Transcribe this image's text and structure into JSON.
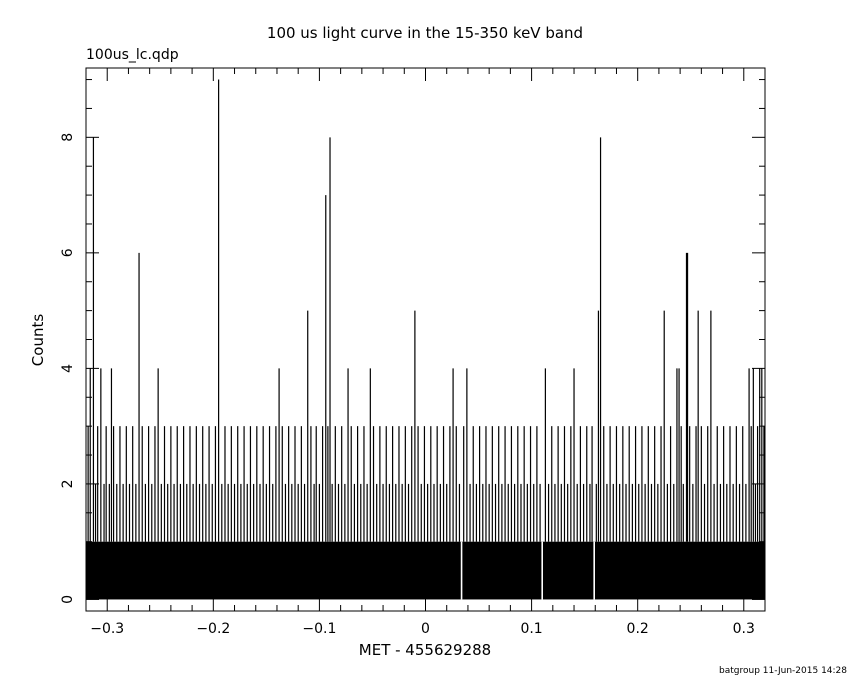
{
  "chart_data": {
    "type": "bar",
    "title": "100 us light curve in the 15-350 keV band",
    "subtitle": "100us_lc.qdp",
    "xlabel": "MET - 455629288",
    "ylabel": "Counts",
    "footer": "batgroup 11-Jun-2015 14:28",
    "xlim": [
      -0.32,
      0.32
    ],
    "ylim": [
      -0.2,
      9.2
    ],
    "x_ticks": [
      -0.3,
      -0.2,
      -0.1,
      0,
      0.1,
      0.2,
      0.3
    ],
    "x_tick_labels": [
      "−0.3",
      "−0.2",
      "−0.1",
      "0",
      "0.1",
      "0.2",
      "0.3"
    ],
    "y_ticks": [
      0,
      2,
      4,
      6,
      8
    ],
    "y_tick_labels": [
      "0",
      "2",
      "4",
      "6",
      "8"
    ],
    "grid": false,
    "bin_width": 0.0001,
    "baseline_counts": 1,
    "zero_count_bins": [
      0.034,
      0.11,
      0.159
    ],
    "series": [
      {
        "values_at_x": [
          [
            -0.318,
            3
          ],
          [
            -0.316,
            4
          ],
          [
            -0.313,
            8
          ],
          [
            -0.311,
            2
          ],
          [
            -0.309,
            3
          ],
          [
            -0.306,
            4
          ],
          [
            -0.303,
            2
          ],
          [
            -0.301,
            3
          ],
          [
            -0.298,
            2
          ],
          [
            -0.296,
            4
          ],
          [
            -0.294,
            3
          ],
          [
            -0.291,
            2
          ],
          [
            -0.288,
            3
          ],
          [
            -0.285,
            2
          ],
          [
            -0.282,
            3
          ],
          [
            -0.279,
            2
          ],
          [
            -0.276,
            3
          ],
          [
            -0.273,
            2
          ],
          [
            -0.27,
            6
          ],
          [
            -0.267,
            3
          ],
          [
            -0.264,
            2
          ],
          [
            -0.261,
            3
          ],
          [
            -0.258,
            2
          ],
          [
            -0.255,
            3
          ],
          [
            -0.252,
            4
          ],
          [
            -0.249,
            2
          ],
          [
            -0.246,
            3
          ],
          [
            -0.243,
            2
          ],
          [
            -0.24,
            3
          ],
          [
            -0.237,
            2
          ],
          [
            -0.234,
            3
          ],
          [
            -0.231,
            2
          ],
          [
            -0.228,
            3
          ],
          [
            -0.225,
            2
          ],
          [
            -0.222,
            3
          ],
          [
            -0.219,
            2
          ],
          [
            -0.216,
            3
          ],
          [
            -0.213,
            2
          ],
          [
            -0.21,
            3
          ],
          [
            -0.207,
            2
          ],
          [
            -0.204,
            3
          ],
          [
            -0.201,
            2
          ],
          [
            -0.198,
            3
          ],
          [
            -0.195,
            9
          ],
          [
            -0.192,
            2
          ],
          [
            -0.189,
            3
          ],
          [
            -0.186,
            2
          ],
          [
            -0.183,
            3
          ],
          [
            -0.18,
            2
          ],
          [
            -0.177,
            3
          ],
          [
            -0.174,
            2
          ],
          [
            -0.171,
            3
          ],
          [
            -0.168,
            2
          ],
          [
            -0.165,
            3
          ],
          [
            -0.162,
            2
          ],
          [
            -0.159,
            3
          ],
          [
            -0.156,
            2
          ],
          [
            -0.153,
            3
          ],
          [
            -0.15,
            2
          ],
          [
            -0.147,
            3
          ],
          [
            -0.144,
            2
          ],
          [
            -0.141,
            3
          ],
          [
            -0.138,
            4
          ],
          [
            -0.135,
            3
          ],
          [
            -0.132,
            2
          ],
          [
            -0.129,
            3
          ],
          [
            -0.126,
            2
          ],
          [
            -0.123,
            3
          ],
          [
            -0.12,
            2
          ],
          [
            -0.117,
            3
          ],
          [
            -0.114,
            2
          ],
          [
            -0.111,
            5
          ],
          [
            -0.108,
            3
          ],
          [
            -0.105,
            2
          ],
          [
            -0.103,
            3
          ],
          [
            -0.1,
            2
          ],
          [
            -0.097,
            3
          ],
          [
            -0.094,
            7
          ],
          [
            -0.092,
            3
          ],
          [
            -0.09,
            8
          ],
          [
            -0.088,
            2
          ],
          [
            -0.085,
            3
          ],
          [
            -0.082,
            2
          ],
          [
            -0.079,
            3
          ],
          [
            -0.076,
            2
          ],
          [
            -0.073,
            4
          ],
          [
            -0.07,
            3
          ],
          [
            -0.067,
            2
          ],
          [
            -0.064,
            3
          ],
          [
            -0.061,
            2
          ],
          [
            -0.058,
            3
          ],
          [
            -0.055,
            2
          ],
          [
            -0.052,
            4
          ],
          [
            -0.049,
            3
          ],
          [
            -0.046,
            2
          ],
          [
            -0.043,
            3
          ],
          [
            -0.04,
            2
          ],
          [
            -0.037,
            3
          ],
          [
            -0.034,
            2
          ],
          [
            -0.031,
            3
          ],
          [
            -0.028,
            2
          ],
          [
            -0.025,
            3
          ],
          [
            -0.022,
            2
          ],
          [
            -0.019,
            3
          ],
          [
            -0.016,
            2
          ],
          [
            -0.013,
            3
          ],
          [
            -0.01,
            5
          ],
          [
            -0.007,
            3
          ],
          [
            -0.004,
            2
          ],
          [
            -0.001,
            3
          ],
          [
            0.002,
            2
          ],
          [
            0.005,
            3
          ],
          [
            0.008,
            2
          ],
          [
            0.011,
            3
          ],
          [
            0.014,
            2
          ],
          [
            0.017,
            3
          ],
          [
            0.02,
            2
          ],
          [
            0.023,
            3
          ],
          [
            0.026,
            4
          ],
          [
            0.029,
            3
          ],
          [
            0.032,
            2
          ],
          [
            0.036,
            3
          ],
          [
            0.039,
            4
          ],
          [
            0.042,
            2
          ],
          [
            0.045,
            3
          ],
          [
            0.048,
            2
          ],
          [
            0.051,
            3
          ],
          [
            0.054,
            2
          ],
          [
            0.057,
            3
          ],
          [
            0.06,
            2
          ],
          [
            0.063,
            3
          ],
          [
            0.066,
            2
          ],
          [
            0.069,
            3
          ],
          [
            0.072,
            2
          ],
          [
            0.075,
            3
          ],
          [
            0.078,
            2
          ],
          [
            0.081,
            3
          ],
          [
            0.084,
            2
          ],
          [
            0.087,
            3
          ],
          [
            0.09,
            2
          ],
          [
            0.093,
            3
          ],
          [
            0.096,
            2
          ],
          [
            0.099,
            3
          ],
          [
            0.102,
            2
          ],
          [
            0.105,
            3
          ],
          [
            0.108,
            2
          ],
          [
            0.113,
            4
          ],
          [
            0.116,
            2
          ],
          [
            0.119,
            3
          ],
          [
            0.122,
            2
          ],
          [
            0.125,
            3
          ],
          [
            0.128,
            2
          ],
          [
            0.131,
            3
          ],
          [
            0.134,
            2
          ],
          [
            0.137,
            3
          ],
          [
            0.14,
            4
          ],
          [
            0.143,
            2
          ],
          [
            0.146,
            3
          ],
          [
            0.149,
            2
          ],
          [
            0.152,
            3
          ],
          [
            0.155,
            2
          ],
          [
            0.157,
            3
          ],
          [
            0.161,
            2
          ],
          [
            0.163,
            5
          ],
          [
            0.165,
            8
          ],
          [
            0.168,
            3
          ],
          [
            0.171,
            2
          ],
          [
            0.174,
            3
          ],
          [
            0.177,
            2
          ],
          [
            0.18,
            3
          ],
          [
            0.183,
            2
          ],
          [
            0.186,
            3
          ],
          [
            0.189,
            2
          ],
          [
            0.192,
            3
          ],
          [
            0.195,
            2
          ],
          [
            0.198,
            3
          ],
          [
            0.201,
            2
          ],
          [
            0.204,
            3
          ],
          [
            0.207,
            2
          ],
          [
            0.21,
            3
          ],
          [
            0.213,
            2
          ],
          [
            0.216,
            3
          ],
          [
            0.219,
            2
          ],
          [
            0.222,
            3
          ],
          [
            0.225,
            5
          ],
          [
            0.228,
            2
          ],
          [
            0.231,
            3
          ],
          [
            0.234,
            2
          ],
          [
            0.237,
            4
          ],
          [
            0.239,
            4
          ],
          [
            0.241,
            3
          ],
          [
            0.243,
            2
          ],
          [
            0.246,
            6
          ],
          [
            0.247,
            6
          ],
          [
            0.249,
            3
          ],
          [
            0.252,
            2
          ],
          [
            0.255,
            3
          ],
          [
            0.257,
            5
          ],
          [
            0.26,
            3
          ],
          [
            0.263,
            2
          ],
          [
            0.266,
            3
          ],
          [
            0.269,
            5
          ],
          [
            0.272,
            2
          ],
          [
            0.275,
            3
          ],
          [
            0.278,
            2
          ],
          [
            0.281,
            3
          ],
          [
            0.284,
            2
          ],
          [
            0.287,
            3
          ],
          [
            0.29,
            2
          ],
          [
            0.293,
            3
          ],
          [
            0.296,
            2
          ],
          [
            0.299,
            3
          ],
          [
            0.302,
            2
          ],
          [
            0.305,
            4
          ],
          [
            0.307,
            3
          ],
          [
            0.309,
            4
          ],
          [
            0.311,
            2
          ],
          [
            0.313,
            3
          ],
          [
            0.315,
            4
          ],
          [
            0.317,
            4
          ],
          [
            0.319,
            3
          ]
        ]
      }
    ]
  }
}
